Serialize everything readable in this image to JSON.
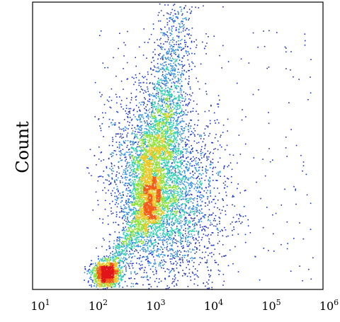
{
  "chart_data": {
    "type": "scatter",
    "title": "",
    "xlabel": "",
    "ylabel": "Count",
    "x_scale": "log",
    "xlim": [
      10,
      1000000
    ],
    "y_ticks_shown": false,
    "x_ticks": [
      {
        "base": "10",
        "exp": "1"
      },
      {
        "base": "10",
        "exp": "2"
      },
      {
        "base": "10",
        "exp": "3"
      },
      {
        "base": "10",
        "exp": "4"
      },
      {
        "base": "10",
        "exp": "5"
      },
      {
        "base": "10",
        "exp": "6"
      }
    ],
    "density_colors": [
      "#1a2fd0",
      "#2f8de0",
      "#2fd0b0",
      "#8fe03a",
      "#e8c82a",
      "#f25a16",
      "#e0141a"
    ],
    "clusters": [
      {
        "x_log_center": 2.35,
        "y_fraction": 0.06,
        "density": "peak"
      },
      {
        "x_log_center": 3.1,
        "y_fraction": 0.34,
        "density": "medium"
      }
    ],
    "grid": false,
    "legend": "none"
  }
}
